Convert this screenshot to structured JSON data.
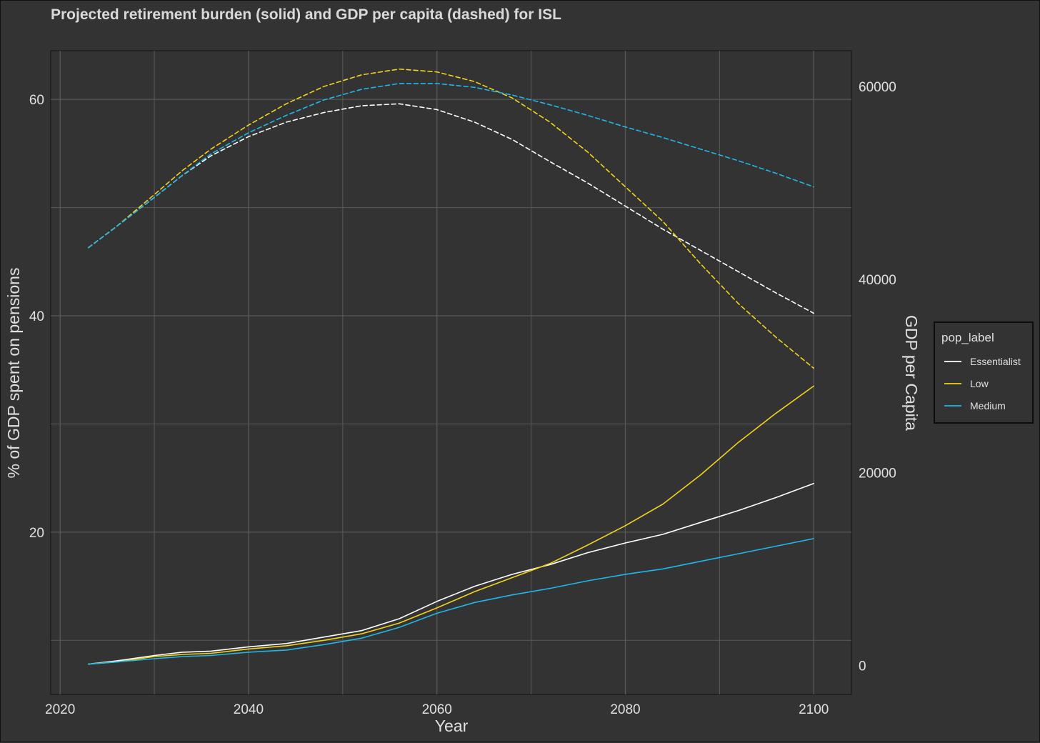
{
  "chart_data": {
    "type": "line",
    "title": "Projected retirement burden (solid) and GDP per capita (dashed) for ISL",
    "xlabel": "Year",
    "ylabel": "% of GDP spent on pensions",
    "y2label": "GDP per Capita",
    "xlim": [
      2019,
      2104
    ],
    "ylim": [
      5,
      64.5
    ],
    "y2lim": [
      -3000,
      63700
    ],
    "x_ticks": [
      2020,
      2040,
      2060,
      2080,
      2100
    ],
    "x_tick_labels": [
      "2020",
      "2040",
      "2060",
      "2080",
      "2100"
    ],
    "y_ticks": [
      20,
      40,
      60
    ],
    "y_tick_labels": [
      "20",
      "40",
      "60"
    ],
    "y_minor_ticks": [
      10,
      30,
      50
    ],
    "y2_ticks": [
      0,
      20000,
      40000,
      60000
    ],
    "y2_tick_labels": [
      "0",
      "20000",
      "40000",
      "60000"
    ],
    "legend": {
      "title": "pop_label",
      "position": "right",
      "entries": [
        "Essentialist",
        "Low",
        "Medium"
      ]
    },
    "colors": {
      "Essentialist": "#ffffff",
      "Low": "#f2d21c",
      "Medium": "#1fb6e8",
      "panel": "#333333",
      "grid": "#595959",
      "text": "#e0e0e0"
    },
    "x": [
      2023,
      2026,
      2030,
      2033,
      2036,
      2040,
      2044,
      2048,
      2052,
      2056,
      2060,
      2064,
      2068,
      2072,
      2076,
      2080,
      2084,
      2088,
      2092,
      2096,
      2100
    ],
    "series": [
      {
        "name": "Essentialist",
        "metric": "pension_pct",
        "style": "solid",
        "values": [
          7.8,
          8.1,
          8.6,
          8.9,
          9.0,
          9.4,
          9.7,
          10.3,
          10.9,
          12.0,
          13.6,
          15.0,
          16.1,
          17.0,
          18.1,
          19.0,
          19.8,
          20.9,
          22.0,
          23.2,
          24.5
        ]
      },
      {
        "name": "Low",
        "metric": "pension_pct",
        "style": "solid",
        "values": [
          7.8,
          8.0,
          8.5,
          8.7,
          8.8,
          9.2,
          9.5,
          10.0,
          10.6,
          11.6,
          13.0,
          14.5,
          15.8,
          17.1,
          18.8,
          20.6,
          22.6,
          25.3,
          28.3,
          31.0,
          33.5
        ]
      },
      {
        "name": "Medium",
        "metric": "pension_pct",
        "style": "solid",
        "values": [
          7.8,
          8.0,
          8.3,
          8.5,
          8.6,
          8.9,
          9.1,
          9.6,
          10.2,
          11.2,
          12.5,
          13.5,
          14.2,
          14.8,
          15.5,
          16.1,
          16.6,
          17.3,
          18.0,
          18.7,
          19.4
        ]
      },
      {
        "name": "Essentialist",
        "metric": "gdp_per_capita",
        "style": "dashed",
        "values": [
          43300,
          45500,
          48500,
          50800,
          52800,
          54800,
          56300,
          57300,
          58000,
          58200,
          57600,
          56300,
          54500,
          52200,
          50000,
          47600,
          45200,
          43000,
          40800,
          38600,
          36500
        ]
      },
      {
        "name": "Low",
        "metric": "gdp_per_capita",
        "style": "dashed",
        "values": [
          43300,
          45500,
          48800,
          51300,
          53500,
          56000,
          58200,
          60000,
          61200,
          61800,
          61500,
          60500,
          58800,
          56300,
          53200,
          49600,
          46000,
          41600,
          37500,
          34000,
          30800
        ]
      },
      {
        "name": "Medium",
        "metric": "gdp_per_capita",
        "style": "dashed",
        "values": [
          43300,
          45500,
          48500,
          50800,
          53000,
          55200,
          57000,
          58600,
          59700,
          60300,
          60300,
          59900,
          59100,
          58100,
          57000,
          55800,
          54700,
          53500,
          52300,
          51000,
          49600
        ]
      }
    ]
  }
}
